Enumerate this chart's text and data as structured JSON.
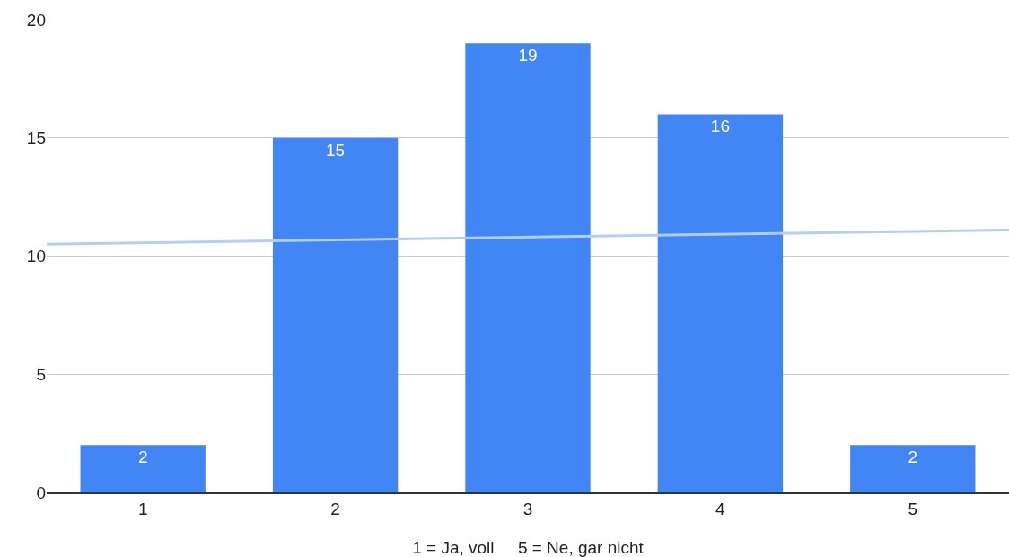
{
  "chart_data": {
    "type": "bar",
    "xlabel": "1 = Ja, voll     5 = Ne, gar nicht",
    "x": [
      1,
      2,
      3,
      4,
      5
    ],
    "xlim": [
      0.5,
      5.5
    ],
    "xticks": [
      1,
      2,
      3,
      4,
      5
    ],
    "ylim": [
      0,
      20
    ],
    "yticks": [
      0,
      5,
      10,
      15,
      20
    ],
    "grid": "y",
    "series": [
      {
        "color": "#4285f4",
        "values": [
          2,
          15,
          19,
          16,
          2
        ],
        "value_labels": [
          "2",
          "15",
          "19",
          "16",
          "2"
        ]
      },
      {
        "type": "line",
        "color": "#b3cefb",
        "x": [
          0.5,
          5.5
        ],
        "values": [
          10.5,
          11.1
        ]
      }
    ]
  }
}
